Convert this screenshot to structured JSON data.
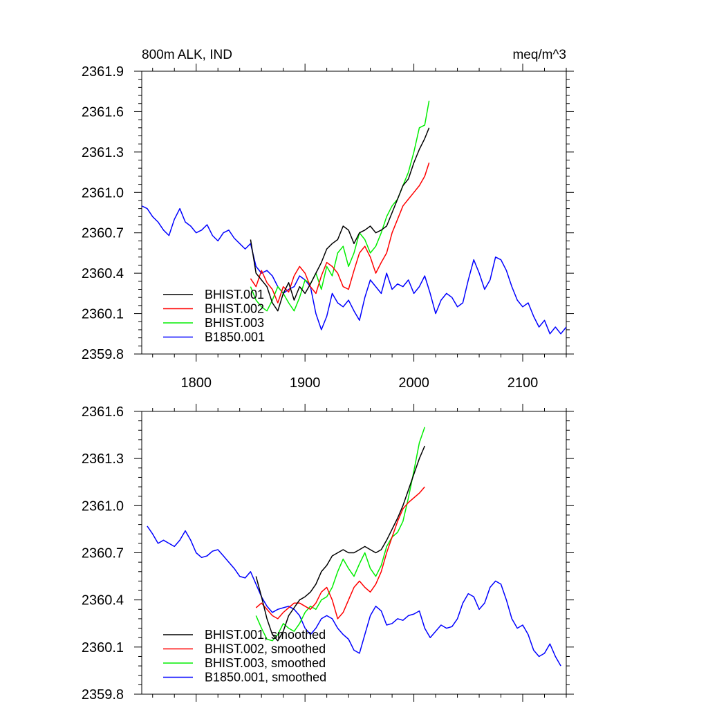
{
  "chart_data": [
    {
      "type": "line",
      "title": "800m ALK, IND",
      "units": "meq/m^3",
      "xlim": [
        1750,
        2140
      ],
      "ylim": [
        2359.8,
        2361.9
      ],
      "x_ticks": [
        1800,
        1900,
        2000,
        2100
      ],
      "x_tick_labels": [
        "1800",
        "1900",
        "2000",
        "2100"
      ],
      "y_ticks": [
        2359.8,
        2360.1,
        2360.4,
        2360.7,
        2361.0,
        2361.3,
        2361.6,
        2361.9
      ],
      "y_tick_labels": [
        "2359.8",
        "2360.1",
        "2360.4",
        "2360.7",
        "2361.0",
        "2361.3",
        "2361.6",
        "2361.9"
      ],
      "legend_position": "bottom-left",
      "grid": false,
      "series": [
        {
          "name": "BHIST.001",
          "color": "#000000",
          "x": [
            1850,
            1855,
            1860,
            1865,
            1870,
            1875,
            1880,
            1885,
            1890,
            1895,
            1900,
            1905,
            1910,
            1915,
            1920,
            1925,
            1930,
            1935,
            1940,
            1945,
            1950,
            1955,
            1960,
            1965,
            1970,
            1975,
            1980,
            1985,
            1990,
            1995,
            2000,
            2005,
            2010,
            2014
          ],
          "y": [
            2360.65,
            2360.4,
            2360.35,
            2360.3,
            2360.18,
            2360.12,
            2360.25,
            2360.33,
            2360.2,
            2360.3,
            2360.25,
            2360.32,
            2360.4,
            2360.48,
            2360.58,
            2360.62,
            2360.65,
            2360.75,
            2360.72,
            2360.62,
            2360.7,
            2360.72,
            2360.75,
            2360.7,
            2360.72,
            2360.75,
            2360.85,
            2360.95,
            2361.05,
            2361.1,
            2361.22,
            2361.32,
            2361.4,
            2361.48
          ]
        },
        {
          "name": "BHIST.002",
          "color": "#ff0000",
          "x": [
            1850,
            1855,
            1860,
            1865,
            1870,
            1875,
            1880,
            1885,
            1890,
            1895,
            1900,
            1905,
            1910,
            1915,
            1920,
            1925,
            1930,
            1935,
            1940,
            1945,
            1950,
            1955,
            1960,
            1965,
            1970,
            1975,
            1980,
            1985,
            1990,
            1995,
            2000,
            2005,
            2010,
            2014
          ],
          "y": [
            2360.36,
            2360.3,
            2360.42,
            2360.33,
            2360.28,
            2360.18,
            2360.3,
            2360.26,
            2360.38,
            2360.45,
            2360.4,
            2360.3,
            2360.25,
            2360.38,
            2360.48,
            2360.45,
            2360.4,
            2360.3,
            2360.28,
            2360.42,
            2360.55,
            2360.6,
            2360.52,
            2360.4,
            2360.48,
            2360.55,
            2360.7,
            2360.8,
            2360.9,
            2360.95,
            2361.0,
            2361.05,
            2361.12,
            2361.22
          ]
        },
        {
          "name": "BHIST.003",
          "color": "#00ee00",
          "x": [
            1850,
            1855,
            1860,
            1865,
            1870,
            1875,
            1880,
            1885,
            1890,
            1895,
            1900,
            1905,
            1910,
            1915,
            1920,
            1925,
            1930,
            1935,
            1940,
            1945,
            1950,
            1955,
            1960,
            1965,
            1970,
            1975,
            1980,
            1985,
            1990,
            1995,
            2000,
            2005,
            2010,
            2014
          ],
          "y": [
            2360.3,
            2360.2,
            2360.15,
            2360.12,
            2360.2,
            2360.3,
            2360.25,
            2360.18,
            2360.12,
            2360.22,
            2360.35,
            2360.32,
            2360.4,
            2360.28,
            2360.45,
            2360.38,
            2360.55,
            2360.6,
            2360.45,
            2360.55,
            2360.7,
            2360.65,
            2360.55,
            2360.6,
            2360.7,
            2360.82,
            2360.9,
            2360.95,
            2361.05,
            2361.15,
            2361.3,
            2361.48,
            2361.5,
            2361.68
          ]
        },
        {
          "name": "B1850.001",
          "color": "#0000ff",
          "x": [
            1750,
            1755,
            1760,
            1765,
            1770,
            1775,
            1780,
            1785,
            1790,
            1795,
            1800,
            1805,
            1810,
            1815,
            1820,
            1825,
            1830,
            1835,
            1840,
            1845,
            1850,
            1855,
            1860,
            1865,
            1870,
            1875,
            1880,
            1885,
            1890,
            1895,
            1900,
            1905,
            1910,
            1915,
            1920,
            1925,
            1930,
            1935,
            1940,
            1945,
            1950,
            1955,
            1960,
            1965,
            1970,
            1975,
            1980,
            1985,
            1990,
            1995,
            2000,
            2005,
            2010,
            2015,
            2020,
            2025,
            2030,
            2035,
            2040,
            2045,
            2050,
            2055,
            2060,
            2065,
            2070,
            2075,
            2080,
            2085,
            2090,
            2095,
            2100,
            2105,
            2110,
            2115,
            2120,
            2125,
            2130,
            2135,
            2140
          ],
          "y": [
            2360.9,
            2360.88,
            2360.82,
            2360.78,
            2360.72,
            2360.68,
            2360.8,
            2360.88,
            2360.78,
            2360.75,
            2360.7,
            2360.72,
            2360.76,
            2360.68,
            2360.64,
            2360.7,
            2360.72,
            2360.66,
            2360.62,
            2360.58,
            2360.62,
            2360.45,
            2360.4,
            2360.42,
            2360.38,
            2360.3,
            2360.25,
            2360.28,
            2360.3,
            2360.38,
            2360.35,
            2360.3,
            2360.1,
            2359.98,
            2360.08,
            2360.25,
            2360.18,
            2360.15,
            2360.2,
            2360.12,
            2360.05,
            2360.22,
            2360.35,
            2360.3,
            2360.25,
            2360.4,
            2360.28,
            2360.32,
            2360.3,
            2360.35,
            2360.25,
            2360.3,
            2360.38,
            2360.25,
            2360.1,
            2360.2,
            2360.25,
            2360.22,
            2360.15,
            2360.18,
            2360.35,
            2360.5,
            2360.4,
            2360.28,
            2360.35,
            2360.52,
            2360.5,
            2360.42,
            2360.3,
            2360.2,
            2360.15,
            2360.18,
            2360.08,
            2360.0,
            2360.05,
            2359.95,
            2360.0,
            2359.95,
            2360.0
          ]
        }
      ]
    },
    {
      "type": "line",
      "xlim": [
        1750,
        2140
      ],
      "ylim": [
        2359.8,
        2361.6
      ],
      "x_ticks": [
        1800,
        1900,
        2000,
        2100
      ],
      "y_ticks": [
        2359.8,
        2360.1,
        2360.4,
        2360.7,
        2361.0,
        2361.3,
        2361.6
      ],
      "y_tick_labels": [
        "2359.8",
        "2360.1",
        "2360.4",
        "2360.7",
        "2361.0",
        "2361.3",
        "2361.6"
      ],
      "legend_position": "bottom-left",
      "grid": false,
      "series": [
        {
          "name": "BHIST.001, smoothed",
          "color": "#000000",
          "x": [
            1855,
            1860,
            1865,
            1870,
            1875,
            1880,
            1885,
            1890,
            1895,
            1900,
            1905,
            1910,
            1915,
            1920,
            1925,
            1930,
            1935,
            1940,
            1945,
            1950,
            1955,
            1960,
            1965,
            1970,
            1975,
            1980,
            1985,
            1990,
            1995,
            2000,
            2005,
            2010
          ],
          "y": [
            2360.55,
            2360.42,
            2360.28,
            2360.18,
            2360.14,
            2360.2,
            2360.3,
            2360.35,
            2360.4,
            2360.42,
            2360.45,
            2360.5,
            2360.58,
            2360.62,
            2360.68,
            2360.7,
            2360.72,
            2360.7,
            2360.7,
            2360.72,
            2360.74,
            2360.72,
            2360.7,
            2360.72,
            2360.78,
            2360.85,
            2360.92,
            2361.0,
            2361.1,
            2361.2,
            2361.3,
            2361.38
          ]
        },
        {
          "name": "BHIST.002, smoothed",
          "color": "#ff0000",
          "x": [
            1855,
            1860,
            1865,
            1870,
            1875,
            1880,
            1885,
            1890,
            1895,
            1900,
            1905,
            1910,
            1915,
            1920,
            1925,
            1930,
            1935,
            1940,
            1945,
            1950,
            1955,
            1960,
            1965,
            1970,
            1975,
            1980,
            1985,
            1990,
            1995,
            2000,
            2005,
            2010
          ],
          "y": [
            2360.35,
            2360.38,
            2360.34,
            2360.3,
            2360.28,
            2360.32,
            2360.35,
            2360.38,
            2360.38,
            2360.36,
            2360.34,
            2360.38,
            2360.45,
            2360.48,
            2360.4,
            2360.28,
            2360.32,
            2360.4,
            2360.48,
            2360.52,
            2360.48,
            2360.45,
            2360.5,
            2360.58,
            2360.7,
            2360.8,
            2360.9,
            2360.98,
            2361.02,
            2361.05,
            2361.08,
            2361.12
          ]
        },
        {
          "name": "BHIST.003, smoothed",
          "color": "#00ee00",
          "x": [
            1855,
            1860,
            1865,
            1870,
            1875,
            1880,
            1885,
            1890,
            1895,
            1900,
            1905,
            1910,
            1915,
            1920,
            1925,
            1930,
            1935,
            1940,
            1945,
            1950,
            1955,
            1960,
            1965,
            1970,
            1975,
            1980,
            1985,
            1990,
            1995,
            2000,
            2005,
            2010
          ],
          "y": [
            2360.3,
            2360.22,
            2360.15,
            2360.14,
            2360.18,
            2360.25,
            2360.22,
            2360.2,
            2360.25,
            2360.32,
            2360.36,
            2360.34,
            2360.4,
            2360.42,
            2360.48,
            2360.58,
            2360.66,
            2360.6,
            2360.55,
            2360.63,
            2360.7,
            2360.6,
            2360.55,
            2360.62,
            2360.74,
            2360.8,
            2360.83,
            2360.9,
            2361.05,
            2361.22,
            2361.4,
            2361.5
          ]
        },
        {
          "name": "B1850.001, smoothed",
          "color": "#0000ff",
          "x": [
            1755,
            1760,
            1765,
            1770,
            1775,
            1780,
            1785,
            1790,
            1795,
            1800,
            1805,
            1810,
            1815,
            1820,
            1825,
            1830,
            1835,
            1840,
            1845,
            1850,
            1855,
            1860,
            1865,
            1870,
            1875,
            1880,
            1885,
            1890,
            1895,
            1900,
            1905,
            1910,
            1915,
            1920,
            1925,
            1930,
            1935,
            1940,
            1945,
            1950,
            1955,
            1960,
            1965,
            1970,
            1975,
            1980,
            1985,
            1990,
            1995,
            2000,
            2005,
            2010,
            2015,
            2020,
            2025,
            2030,
            2035,
            2040,
            2045,
            2050,
            2055,
            2060,
            2065,
            2070,
            2075,
            2080,
            2085,
            2090,
            2095,
            2100,
            2105,
            2110,
            2115,
            2120,
            2125,
            2130,
            2135
          ],
          "y": [
            2360.87,
            2360.82,
            2360.76,
            2360.78,
            2360.76,
            2360.74,
            2360.78,
            2360.84,
            2360.78,
            2360.7,
            2360.67,
            2360.68,
            2360.71,
            2360.72,
            2360.68,
            2360.64,
            2360.6,
            2360.55,
            2360.54,
            2360.58,
            2360.5,
            2360.42,
            2360.36,
            2360.32,
            2360.34,
            2360.35,
            2360.36,
            2360.34,
            2360.3,
            2360.22,
            2360.18,
            2360.22,
            2360.28,
            2360.3,
            2360.28,
            2360.22,
            2360.18,
            2360.15,
            2360.08,
            2360.06,
            2360.18,
            2360.3,
            2360.36,
            2360.33,
            2360.24,
            2360.25,
            2360.28,
            2360.27,
            2360.3,
            2360.31,
            2360.33,
            2360.22,
            2360.16,
            2360.2,
            2360.24,
            2360.22,
            2360.23,
            2360.28,
            2360.38,
            2360.44,
            2360.42,
            2360.34,
            2360.38,
            2360.48,
            2360.52,
            2360.5,
            2360.4,
            2360.28,
            2360.22,
            2360.24,
            2360.18,
            2360.08,
            2360.04,
            2360.06,
            2360.12,
            2360.04,
            2359.98
          ]
        }
      ]
    }
  ]
}
